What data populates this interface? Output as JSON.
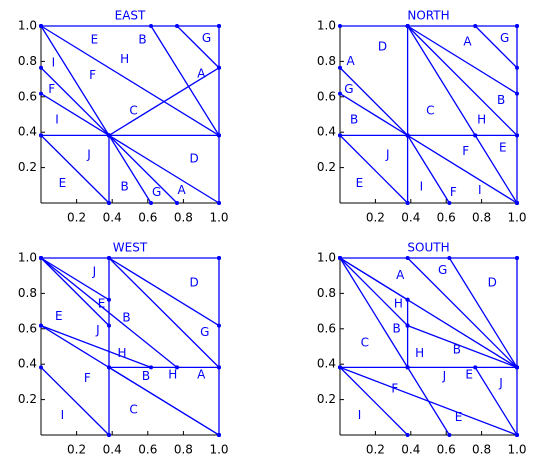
{
  "chart_data": [
    {
      "type": "segments",
      "title": "EAST",
      "color": "#0000ff",
      "xlim": [
        0,
        1
      ],
      "ylim": [
        0,
        1
      ],
      "xticks": [
        0.2,
        0.4,
        0.6,
        0.8,
        {
          "value": 1,
          "label": "1.0"
        }
      ],
      "yticks": [
        0.2,
        0.4,
        0.6,
        0.8,
        {
          "value": 1,
          "label": "1.0"
        }
      ],
      "segments": [
        {
          "x": [
            0,
            1
          ],
          "y": [
            1,
            1
          ]
        },
        {
          "x": [
            1,
            1
          ],
          "y": [
            1,
            0
          ]
        },
        {
          "x": [
            0,
            1
          ],
          "y": [
            0.382,
            0.382
          ]
        },
        {
          "x": [
            0.382,
            0.382
          ],
          "y": [
            0.382,
            0
          ]
        },
        {
          "x": [
            0,
            1
          ],
          "y": [
            1,
            0.382
          ]
        },
        {
          "x": [
            0,
            0.382
          ],
          "y": [
            1,
            0.382
          ]
        },
        {
          "x": [
            0.618,
            1
          ],
          "y": [
            1,
            0.382
          ]
        },
        {
          "x": [
            0.764,
            1
          ],
          "y": [
            1,
            0.764
          ]
        },
        {
          "x": [
            0.382,
            1
          ],
          "y": [
            0.382,
            0.764
          ]
        },
        {
          "x": [
            0,
            0.382
          ],
          "y": [
            0.764,
            0.382
          ]
        },
        {
          "x": [
            0,
            0.382
          ],
          "y": [
            0.618,
            0.382
          ]
        },
        {
          "x": [
            0,
            0.382
          ],
          "y": [
            0.382,
            0
          ]
        },
        {
          "x": [
            0.382,
            0.618
          ],
          "y": [
            0.382,
            0
          ]
        },
        {
          "x": [
            0.382,
            0.764
          ],
          "y": [
            0.382,
            0
          ]
        },
        {
          "x": [
            0.382,
            1
          ],
          "y": [
            0.382,
            0
          ]
        }
      ],
      "annotations": [
        {
          "text": "E",
          "x": 0.3,
          "y": 0.92
        },
        {
          "text": "B",
          "x": 0.57,
          "y": 0.92
        },
        {
          "text": "G",
          "x": 0.93,
          "y": 0.93
        },
        {
          "text": "I",
          "x": 0.07,
          "y": 0.79
        },
        {
          "text": "H",
          "x": 0.47,
          "y": 0.81
        },
        {
          "text": "F",
          "x": 0.29,
          "y": 0.72
        },
        {
          "text": "A",
          "x": 0.9,
          "y": 0.73
        },
        {
          "text": "F",
          "x": 0.06,
          "y": 0.64
        },
        {
          "text": "C",
          "x": 0.52,
          "y": 0.52
        },
        {
          "text": "I",
          "x": 0.09,
          "y": 0.47
        },
        {
          "text": "J",
          "x": 0.27,
          "y": 0.27
        },
        {
          "text": "D",
          "x": 0.86,
          "y": 0.25
        },
        {
          "text": "E",
          "x": 0.12,
          "y": 0.11
        },
        {
          "text": "B",
          "x": 0.47,
          "y": 0.09
        },
        {
          "text": "G",
          "x": 0.65,
          "y": 0.06
        },
        {
          "text": "A",
          "x": 0.79,
          "y": 0.07
        }
      ]
    },
    {
      "type": "segments",
      "title": "NORTH",
      "color": "#0000ff",
      "xlim": [
        0,
        1
      ],
      "ylim": [
        0,
        1
      ],
      "xticks": [
        0.2,
        0.4,
        0.6,
        0.8,
        {
          "value": 1,
          "label": "1.0"
        }
      ],
      "yticks": [
        0.2,
        0.4,
        0.6,
        0.8,
        {
          "value": 1,
          "label": "1.0"
        }
      ],
      "segments": [
        {
          "x": [
            0,
            1
          ],
          "y": [
            1,
            1
          ]
        },
        {
          "x": [
            1,
            1
          ],
          "y": [
            1,
            0
          ]
        },
        {
          "x": [
            0,
            1
          ],
          "y": [
            0.382,
            0.382
          ]
        },
        {
          "x": [
            0.382,
            0.382
          ],
          "y": [
            1,
            0
          ]
        },
        {
          "x": [
            0.764,
            1
          ],
          "y": [
            1,
            0.764
          ]
        },
        {
          "x": [
            0.382,
            1
          ],
          "y": [
            1,
            0.618
          ]
        },
        {
          "x": [
            0.382,
            1
          ],
          "y": [
            1,
            0.382
          ]
        },
        {
          "x": [
            0.382,
            0.764
          ],
          "y": [
            1,
            0.382
          ]
        },
        {
          "x": [
            0,
            0.382
          ],
          "y": [
            0.764,
            0.382
          ]
        },
        {
          "x": [
            0,
            0.382
          ],
          "y": [
            0.618,
            0.382
          ]
        },
        {
          "x": [
            0,
            0.382
          ],
          "y": [
            0.382,
            0
          ]
        },
        {
          "x": [
            0.382,
            0.618
          ],
          "y": [
            0.382,
            0
          ]
        },
        {
          "x": [
            0.382,
            1
          ],
          "y": [
            0.382,
            0
          ]
        },
        {
          "x": [
            0.764,
            1
          ],
          "y": [
            0.382,
            0
          ]
        }
      ],
      "annotations": [
        {
          "text": "D",
          "x": 0.24,
          "y": 0.88
        },
        {
          "text": "A",
          "x": 0.72,
          "y": 0.91
        },
        {
          "text": "G",
          "x": 0.93,
          "y": 0.93
        },
        {
          "text": "A",
          "x": 0.06,
          "y": 0.8
        },
        {
          "text": "G",
          "x": 0.05,
          "y": 0.64
        },
        {
          "text": "B",
          "x": 0.91,
          "y": 0.58
        },
        {
          "text": "C",
          "x": 0.51,
          "y": 0.52
        },
        {
          "text": "B",
          "x": 0.08,
          "y": 0.47
        },
        {
          "text": "H",
          "x": 0.8,
          "y": 0.47
        },
        {
          "text": "F",
          "x": 0.71,
          "y": 0.29
        },
        {
          "text": "E",
          "x": 0.92,
          "y": 0.31
        },
        {
          "text": "J",
          "x": 0.27,
          "y": 0.27
        },
        {
          "text": "E",
          "x": 0.11,
          "y": 0.11
        },
        {
          "text": "I",
          "x": 0.46,
          "y": 0.09
        },
        {
          "text": "F",
          "x": 0.64,
          "y": 0.06
        },
        {
          "text": "I",
          "x": 0.79,
          "y": 0.07
        }
      ]
    },
    {
      "type": "segments",
      "title": "WEST",
      "color": "#0000ff",
      "xlim": [
        0,
        1
      ],
      "ylim": [
        0,
        1
      ],
      "xticks": [
        0.2,
        0.4,
        0.6,
        0.8,
        {
          "value": 1,
          "label": "1.0"
        }
      ],
      "yticks": [
        0.2,
        0.4,
        0.6,
        0.8,
        {
          "value": 1,
          "label": "1.0"
        }
      ],
      "segments": [
        {
          "x": [
            0,
            1
          ],
          "y": [
            1,
            1
          ]
        },
        {
          "x": [
            1,
            1
          ],
          "y": [
            1,
            0
          ]
        },
        {
          "x": [
            0.382,
            0.382
          ],
          "y": [
            1,
            0
          ]
        },
        {
          "x": [
            0.382,
            1
          ],
          "y": [
            0.382,
            0.382
          ]
        },
        {
          "x": [
            0,
            0.382
          ],
          "y": [
            1,
            0.764
          ]
        },
        {
          "x": [
            0,
            0.382
          ],
          "y": [
            1,
            0.618
          ]
        },
        {
          "x": [
            0,
            0.764
          ],
          "y": [
            1,
            0.382
          ]
        },
        {
          "x": [
            0.382,
            1
          ],
          "y": [
            1,
            0.618
          ]
        },
        {
          "x": [
            0.382,
            1
          ],
          "y": [
            1,
            0.382
          ]
        },
        {
          "x": [
            0.382,
            1
          ],
          "y": [
            0.382,
            0
          ]
        },
        {
          "x": [
            0,
            0.618
          ],
          "y": [
            0.618,
            0.382
          ]
        },
        {
          "x": [
            0,
            0.382
          ],
          "y": [
            0.382,
            0
          ]
        },
        {
          "x": [
            0,
            1
          ],
          "y": [
            0.618,
            0
          ]
        }
      ],
      "annotations": [
        {
          "text": "J",
          "x": 0.3,
          "y": 0.92
        },
        {
          "text": "D",
          "x": 0.86,
          "y": 0.86
        },
        {
          "text": "E",
          "x": 0.34,
          "y": 0.74
        },
        {
          "text": "E",
          "x": 0.1,
          "y": 0.67
        },
        {
          "text": "B",
          "x": 0.48,
          "y": 0.66
        },
        {
          "text": "J",
          "x": 0.32,
          "y": 0.59
        },
        {
          "text": "G",
          "x": 0.92,
          "y": 0.58
        },
        {
          "text": "H",
          "x": 0.455,
          "y": 0.46
        },
        {
          "text": "F",
          "x": 0.26,
          "y": 0.32
        },
        {
          "text": "B",
          "x": 0.59,
          "y": 0.33
        },
        {
          "text": "H",
          "x": 0.74,
          "y": 0.34
        },
        {
          "text": "A",
          "x": 0.9,
          "y": 0.34
        },
        {
          "text": "C",
          "x": 0.52,
          "y": 0.14
        },
        {
          "text": "I",
          "x": 0.12,
          "y": 0.11
        }
      ]
    },
    {
      "type": "segments",
      "title": "SOUTH",
      "color": "#0000ff",
      "xlim": [
        0,
        1
      ],
      "ylim": [
        0,
        1
      ],
      "xticks": [
        0.2,
        0.4,
        0.6,
        0.8,
        {
          "value": 1,
          "label": "1.0"
        }
      ],
      "yticks": [
        0.2,
        0.4,
        0.6,
        0.8,
        {
          "value": 1,
          "label": "1.0"
        }
      ],
      "segments": [
        {
          "x": [
            0,
            1
          ],
          "y": [
            1,
            1
          ]
        },
        {
          "x": [
            1,
            1
          ],
          "y": [
            1,
            0
          ]
        },
        {
          "x": [
            0,
            1
          ],
          "y": [
            0.382,
            0.382
          ]
        },
        {
          "x": [
            0.382,
            0.382
          ],
          "y": [
            0.764,
            0.382
          ]
        },
        {
          "x": [
            0,
            0.382
          ],
          "y": [
            1,
            0.764
          ]
        },
        {
          "x": [
            0,
            0.382
          ],
          "y": [
            1,
            0.618
          ]
        },
        {
          "x": [
            0,
            1
          ],
          "y": [
            1,
            0.382
          ]
        },
        {
          "x": [
            0,
            0.382
          ],
          "y": [
            1,
            0.382
          ]
        },
        {
          "x": [
            0.382,
            1
          ],
          "y": [
            1,
            0.382
          ]
        },
        {
          "x": [
            0.618,
            1
          ],
          "y": [
            1,
            0.382
          ]
        },
        {
          "x": [
            0.382,
            1
          ],
          "y": [
            0.618,
            0.382
          ]
        },
        {
          "x": [
            0,
            1
          ],
          "y": [
            0.382,
            0
          ]
        },
        {
          "x": [
            0.382,
            0.618
          ],
          "y": [
            0.382,
            0
          ]
        },
        {
          "x": [
            0.764,
            1
          ],
          "y": [
            0.382,
            0
          ]
        },
        {
          "x": [
            0,
            0.382
          ],
          "y": [
            0.382,
            0
          ]
        }
      ],
      "annotations": [
        {
          "text": "A",
          "x": 0.34,
          "y": 0.9
        },
        {
          "text": "G",
          "x": 0.58,
          "y": 0.93
        },
        {
          "text": "D",
          "x": 0.86,
          "y": 0.86
        },
        {
          "text": "H",
          "x": 0.33,
          "y": 0.74
        },
        {
          "text": "B",
          "x": 0.32,
          "y": 0.6
        },
        {
          "text": "C",
          "x": 0.14,
          "y": 0.52
        },
        {
          "text": "H",
          "x": 0.45,
          "y": 0.46
        },
        {
          "text": "B",
          "x": 0.66,
          "y": 0.48
        },
        {
          "text": "J",
          "x": 0.59,
          "y": 0.33
        },
        {
          "text": "E",
          "x": 0.73,
          "y": 0.34
        },
        {
          "text": "J",
          "x": 0.91,
          "y": 0.29
        },
        {
          "text": "F",
          "x": 0.31,
          "y": 0.26
        },
        {
          "text": "I",
          "x": 0.11,
          "y": 0.11
        },
        {
          "text": "E",
          "x": 0.67,
          "y": 0.1
        }
      ]
    }
  ]
}
